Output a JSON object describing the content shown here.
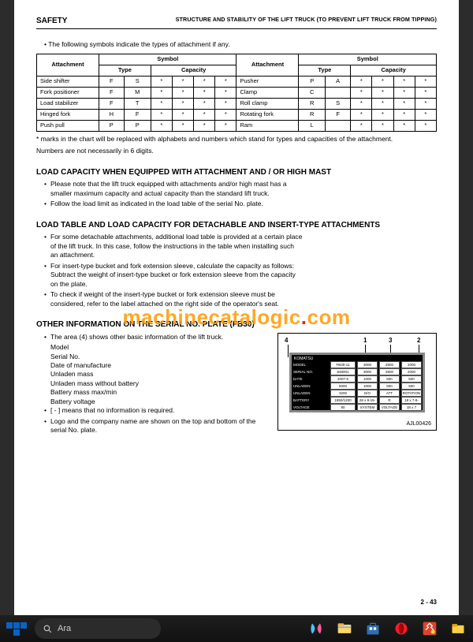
{
  "header": {
    "left": "SAFETY",
    "right": "STRUCTURE AND STABILITY OF THE LIFT TRUCK (TO PREVENT LIFT TRUCK FROM TIPPING)"
  },
  "intro_line": "The following symbols indicate the types of attachment if any.",
  "table": {
    "head": {
      "attachment": "Attachment",
      "symbol": "Symbol",
      "type": "Type",
      "capacity": "Capacity"
    },
    "rows_left": [
      {
        "name": "Side shifter",
        "t1": "F",
        "t2": "S",
        "c": [
          "*",
          "*",
          "*",
          "*"
        ]
      },
      {
        "name": "Fork positioner",
        "t1": "F",
        "t2": "M",
        "c": [
          "*",
          "*",
          "*",
          "*"
        ]
      },
      {
        "name": "Load stabilizer",
        "t1": "F",
        "t2": "T",
        "c": [
          "*",
          "*",
          "*",
          "*"
        ]
      },
      {
        "name": "Hinged fork",
        "t1": "H",
        "t2": "F",
        "c": [
          "*",
          "*",
          "*",
          "*"
        ]
      },
      {
        "name": "Push pull",
        "t1": "P",
        "t2": "P",
        "c": [
          "*",
          "*",
          "*",
          "*"
        ]
      }
    ],
    "rows_right": [
      {
        "name": "Pusher",
        "t1": "P",
        "t2": "A",
        "c": [
          "*",
          "*",
          "*",
          "*"
        ]
      },
      {
        "name": "Clamp",
        "t1": "C",
        "t2": "",
        "c": [
          "*",
          "*",
          "*",
          "*"
        ]
      },
      {
        "name": "Roll clamp",
        "t1": "R",
        "t2": "S",
        "c": [
          "*",
          "*",
          "*",
          "*"
        ]
      },
      {
        "name": "Rotating fork",
        "t1": "R",
        "t2": "F",
        "c": [
          "*",
          "*",
          "*",
          "*"
        ]
      },
      {
        "name": "Ram",
        "t1": "L",
        "t2": "",
        "c": [
          "*",
          "*",
          "*",
          "*"
        ]
      }
    ]
  },
  "table_note1": "* marks in the chart will be replaced with alphabets and numbers which stand for types and capacities of the attachment.",
  "table_note2": "Numbers are not necessarily in 6 digits.",
  "sec1": {
    "title": "LOAD CAPACITY WHEN EQUIPPED WITH ATTACHMENT AND / OR HIGH MAST",
    "items": [
      "Please note that the lift truck equipped with attachments and/or high mast has a smaller maximum capacity and actual capacity than the standard lift truck.",
      "Follow the load limit as indicated in the load table of the serial No. plate."
    ]
  },
  "sec2": {
    "title": "LOAD TABLE AND LOAD CAPACITY FOR DETACHABLE AND INSERT-TYPE ATTACHMENTS",
    "items": [
      "For some detachable attachments, additional load table is provided at a certain place of the lift truck. In this case, follow the instructions in the table when installing such an attachment.",
      "For insert-type bucket and fork extension sleeve, calculate the capacity as follows: Subtract the weight of insert-type bucket or fork extension sleeve from the capacity on the plate.",
      "To check if weight of the insert-type bucket or fork extension sleeve must be considered, refer to the label attached on the right side of the operator's seat."
    ]
  },
  "sec3": {
    "title": "OTHER INFORMATION ON THE SERIAL NO. PLATE (FB30)",
    "lead": "The area (4) shows other basic information of the lift truck.",
    "sublist": [
      "Model",
      "Serial No.",
      "Date of manufacture",
      "Unladen mass",
      "Unladen mass without battery",
      "Battery mass max/min",
      "Battery voltage"
    ],
    "tail1": "[ - ] means that no information is required.",
    "tail2": "Logo and the company name are shown on the top and bottom of the serial No. plate."
  },
  "plate": {
    "leaders": {
      "a": "4",
      "b": "1",
      "c": "3",
      "d": "2"
    },
    "brand": "KOMATSU",
    "brand2": "Komatsu Ltd.",
    "labels": [
      "MODEL",
      "SERIAL NO.",
      "DATE",
      "UNLADEN",
      "UNLADEN",
      "BATTERY",
      "VOLTAGE"
    ],
    "vals": [
      "FB30-11",
      "848001",
      "2007-6",
      "5000",
      "3200",
      "1850/1200",
      "80"
    ],
    "right_top": [
      "3000",
      "2500",
      "2000"
    ],
    "right_mid": [
      "1000",
      "500",
      "500"
    ],
    "right_low1": [
      "D/O",
      "ATT MODEL",
      "ROTATION"
    ],
    "right_low2": [
      "28 x 9-15-12PR",
      "R",
      "18 x 7-8-10PR"
    ],
    "right_low3": [
      "SYSTEM",
      "VOLTAGE",
      "18 x 7"
    ],
    "caption": "AJL00426"
  },
  "page_number": "2 - 43",
  "watermark": {
    "a": "machinecatalogic",
    "b": ".",
    "c": "com"
  },
  "taskbar": {
    "search_placeholder": "Ara"
  }
}
